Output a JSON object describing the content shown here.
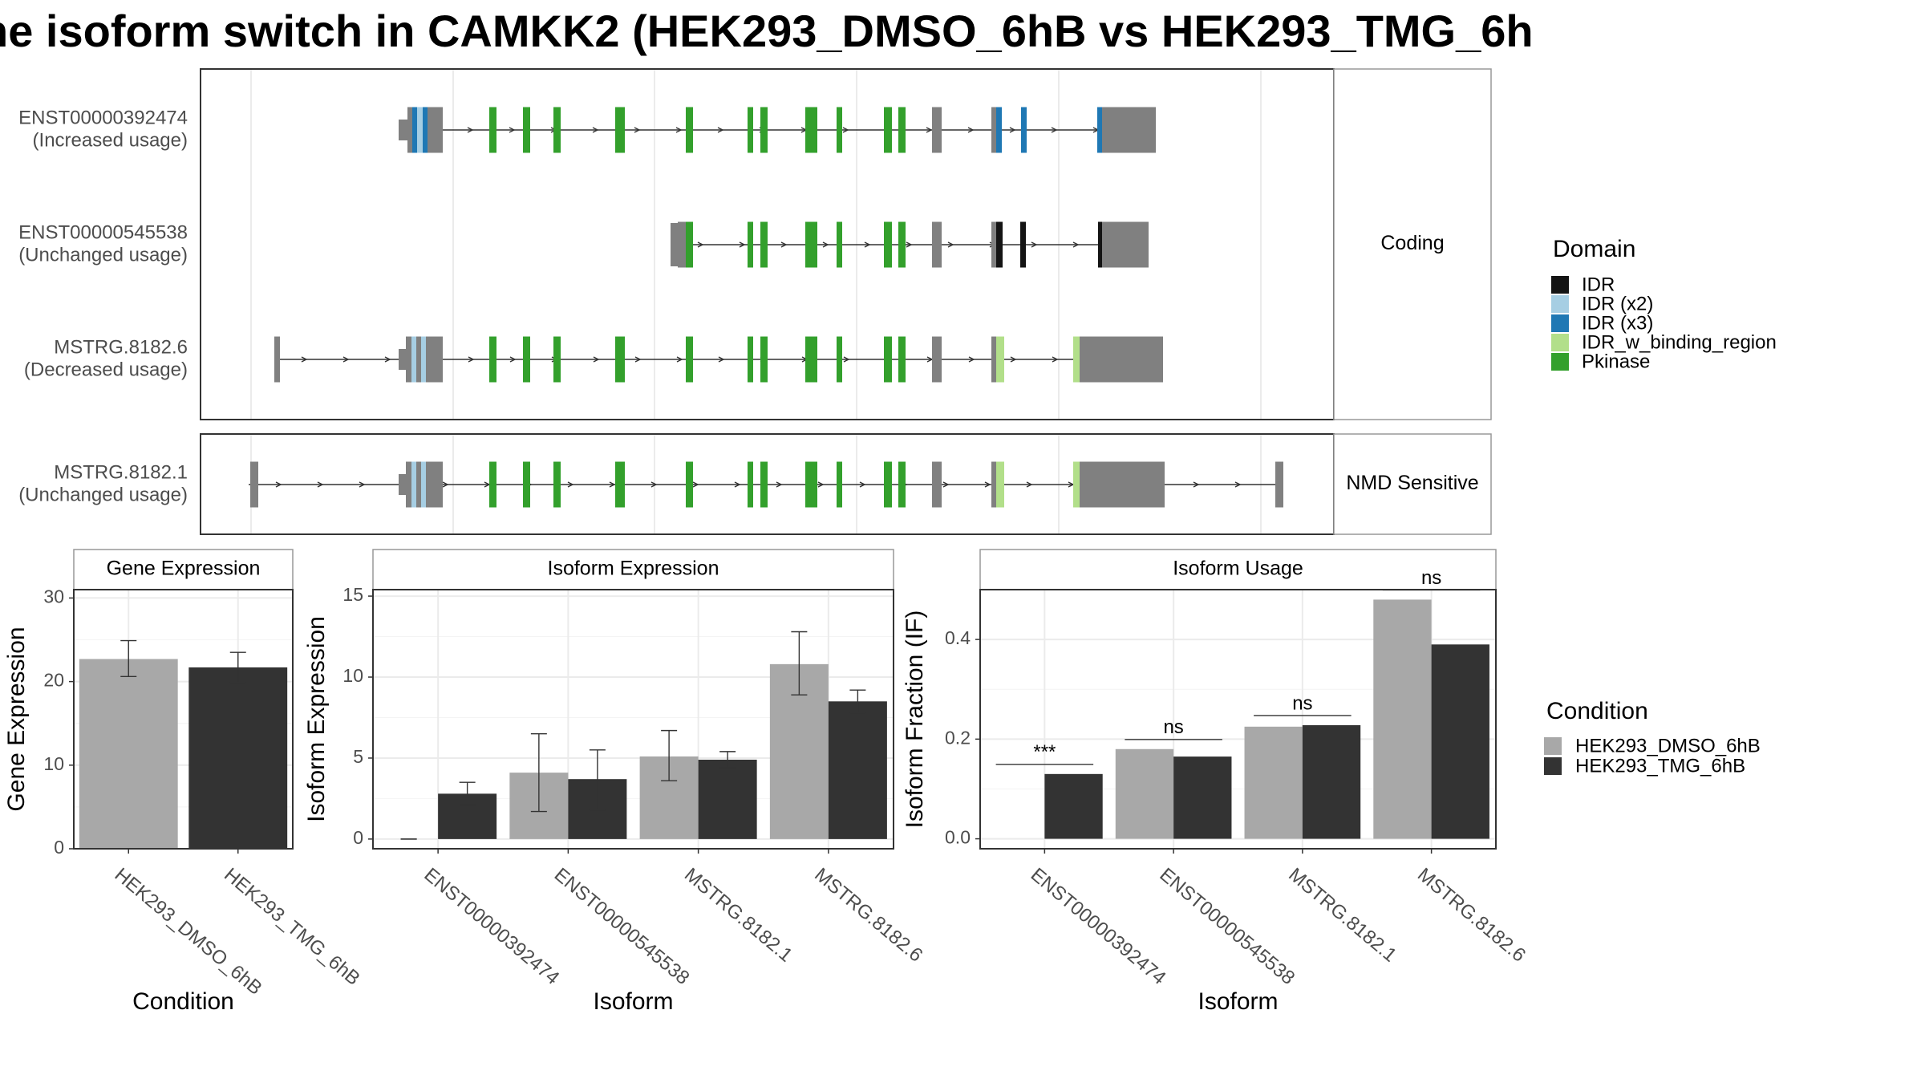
{
  "title": "ne isoform switch in CAMKK2 (HEK293_DMSO_6hB vs HEK293_TMG_6h",
  "colors": {
    "IDR": "#141414",
    "IDR (x2)": "#a6cee3",
    "IDR (x3)": "#1f78b4",
    "IDR_w_binding_region": "#b2df8a",
    "Pkinase": "#33a02c",
    "exon": "#808080",
    "HEK293_DMSO_6hB": "#a8a8a8",
    "HEK293_TMG_6hB": "#333333"
  },
  "panels": {
    "structure_facets": [
      "Coding",
      "NMD Sensitive"
    ],
    "gene_expression_title": "Gene Expression",
    "isoform_expression_title": "Isoform Expression",
    "isoform_usage_title": "Isoform Usage"
  },
  "transcripts": [
    {
      "id": "ENST00000392474",
      "note": "(Increased usage)",
      "facet": "Coding"
    },
    {
      "id": "ENST00000545538",
      "note": "(Unchanged usage)",
      "facet": "Coding"
    },
    {
      "id": "MSTRG.8182.6",
      "note": "(Decreased usage)",
      "facet": "Coding"
    },
    {
      "id": "MSTRG.8182.1",
      "note": "(Unchanged usage)",
      "facet": "NMD Sensitive"
    }
  ],
  "domain_legend": {
    "title": "Domain",
    "items": [
      "IDR",
      "IDR (x2)",
      "IDR (x3)",
      "IDR_w_binding_region",
      "Pkinase"
    ]
  },
  "condition_legend": {
    "title": "Condition",
    "items": [
      "HEK293_DMSO_6hB",
      "HEK293_TMG_6hB"
    ]
  },
  "chart_data": [
    {
      "type": "bar",
      "title": "Gene Expression",
      "xlabel": "Condition",
      "ylabel": "Gene Expression",
      "categories": [
        "HEK293_DMSO_6hB",
        "HEK293_TMG_6hB"
      ],
      "values": [
        22.7,
        21.7
      ],
      "error_low": [
        20.6,
        19.9
      ],
      "error_high": [
        24.9,
        23.5
      ],
      "ylim": [
        0,
        31
      ],
      "yticks": [
        0,
        10,
        20,
        30
      ]
    },
    {
      "type": "bar",
      "title": "Isoform Expression",
      "xlabel": "Isoform",
      "ylabel": "Isoform Expression",
      "categories": [
        "ENST00000392474",
        "ENST00000545538",
        "MSTRG.8182.1",
        "MSTRG.8182.6"
      ],
      "series": [
        {
          "name": "HEK293_DMSO_6hB",
          "values": [
            0.0,
            4.1,
            5.1,
            10.8
          ],
          "error_low": [
            0.0,
            1.7,
            3.6,
            8.9
          ],
          "error_high": [
            0.0,
            6.5,
            6.7,
            12.8
          ]
        },
        {
          "name": "HEK293_TMG_6hB",
          "values": [
            2.8,
            3.7,
            4.9,
            8.5
          ],
          "error_low": [
            2.1,
            1.8,
            4.4,
            7.8
          ],
          "error_high": [
            3.5,
            5.5,
            5.4,
            9.2
          ]
        }
      ],
      "ylim": [
        -0.6,
        15.4
      ],
      "yticks": [
        0,
        5,
        10,
        15
      ]
    },
    {
      "type": "bar",
      "title": "Isoform Usage",
      "xlabel": "Isoform",
      "ylabel": "Isoform Fraction (IF)",
      "categories": [
        "ENST00000392474",
        "ENST00000545538",
        "MSTRG.8182.1",
        "MSTRG.8182.6"
      ],
      "series": [
        {
          "name": "HEK293_DMSO_6hB",
          "values": [
            0.0,
            0.18,
            0.225,
            0.48
          ]
        },
        {
          "name": "HEK293_TMG_6hB",
          "values": [
            0.13,
            0.165,
            0.228,
            0.39
          ]
        }
      ],
      "significance": [
        "***",
        "ns",
        "ns",
        "ns"
      ],
      "ylim": [
        -0.02,
        0.5
      ],
      "yticks": [
        0.0,
        0.2,
        0.4
      ],
      "ytick_labels": [
        "0.0",
        "0.2",
        "0.4"
      ]
    }
  ]
}
